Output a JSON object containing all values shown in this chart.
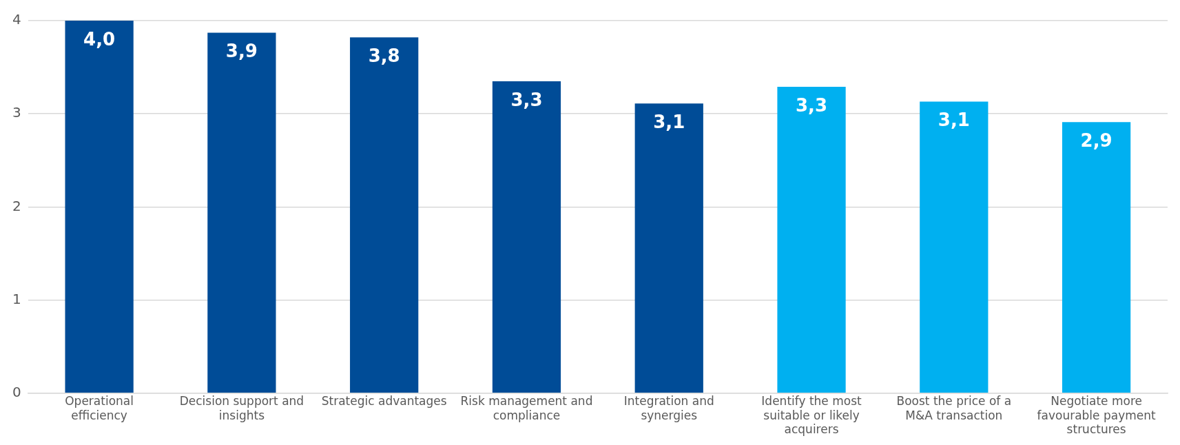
{
  "chart_data": {
    "type": "bar",
    "categories": [
      "Operational efficiency",
      "Decision support and insights",
      "Strategic advantages",
      "Risk management and compliance",
      "Integration and synergies",
      "Identify the most suitable or likely acquirers",
      "Boost the price of a M&A transaction",
      "Negotiate more favourable payment structures"
    ],
    "values": [
      4.0,
      3.87,
      3.82,
      3.35,
      3.11,
      3.29,
      3.13,
      2.91
    ],
    "value_labels": [
      "4,0",
      "3,9",
      "3,8",
      "3,3",
      "3,1",
      "3,3",
      "3,1",
      "2,9"
    ],
    "colors": [
      "#004c97",
      "#004c97",
      "#004c97",
      "#004c97",
      "#004c97",
      "#00b0f0",
      "#00b0f0",
      "#00b0f0"
    ],
    "ylim": [
      0,
      4
    ],
    "yticks": [
      0,
      1,
      2,
      3,
      4
    ],
    "grid": "y"
  }
}
